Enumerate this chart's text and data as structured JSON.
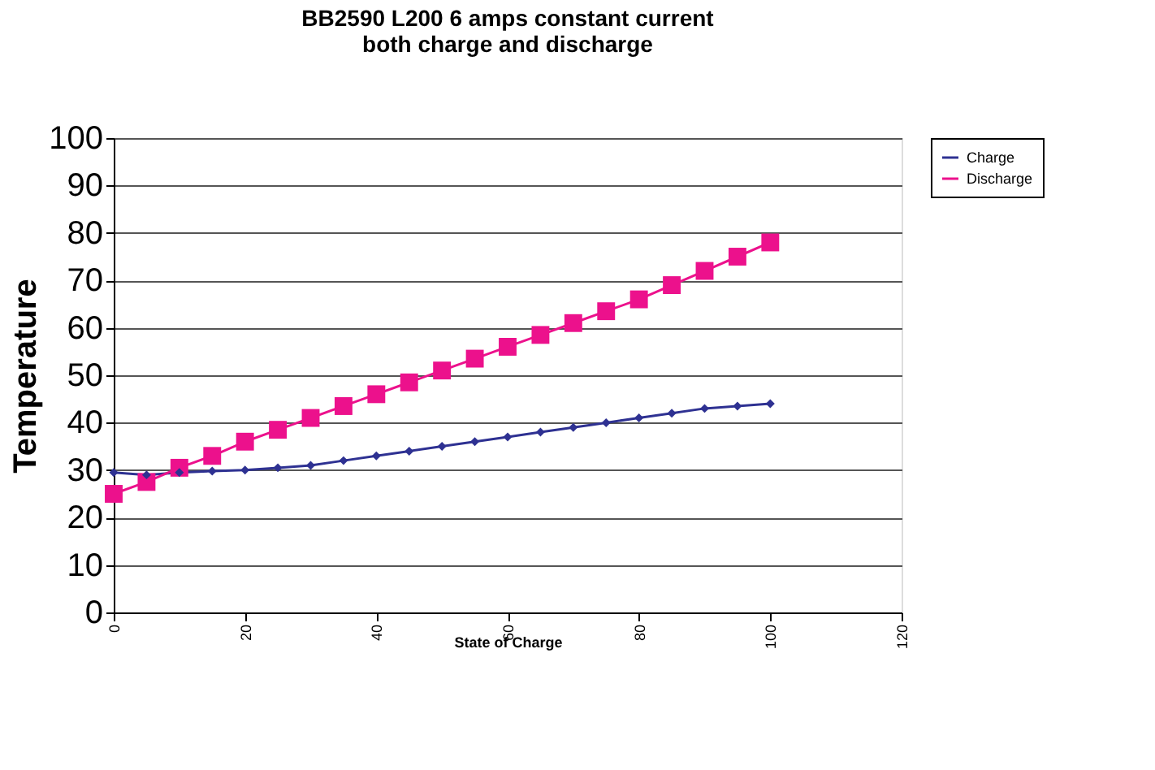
{
  "chart_data": {
    "type": "line",
    "title": [
      "BB2590 L200 6 amps constant current",
      "both charge and discharge"
    ],
    "xlabel": "State of Charge",
    "ylabel": "Temperature",
    "x": [
      0,
      5,
      10,
      15,
      20,
      25,
      30,
      35,
      40,
      45,
      50,
      55,
      60,
      65,
      70,
      75,
      80,
      85,
      90,
      95,
      100
    ],
    "series": [
      {
        "name": "Charge",
        "color": "#2e3192",
        "marker": "diamond",
        "values": [
          29.5,
          29,
          29.5,
          29.8,
          30,
          30.5,
          31,
          32,
          33,
          34,
          35,
          36,
          37,
          38,
          39,
          40,
          41,
          42,
          43,
          43.5,
          44
        ]
      },
      {
        "name": "Discharge",
        "color": "#ec118c",
        "marker": "square",
        "values": [
          25,
          27.5,
          30.5,
          33,
          36,
          38.5,
          41,
          43.5,
          46,
          48.5,
          51,
          53.5,
          56,
          58.5,
          61,
          63.5,
          66,
          69,
          72,
          75,
          78
        ]
      }
    ],
    "xlim": [
      0,
      120
    ],
    "xticks": [
      0,
      20,
      40,
      60,
      80,
      100,
      120
    ],
    "ylim": [
      0,
      100
    ],
    "yticks": [
      0,
      10,
      20,
      30,
      40,
      50,
      60,
      70,
      80,
      90,
      100
    ],
    "grid": "y",
    "legend": "right",
    "line_style": "solid"
  }
}
